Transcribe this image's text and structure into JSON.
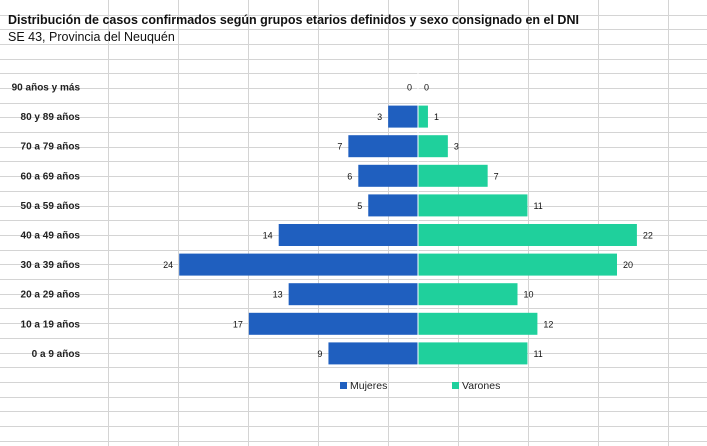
{
  "sheet": {
    "title": "Distribución de casos confirmados según grupos etarios definidos y sexo consignado en el DNI",
    "subtitle": "SE 43, Provincia del Neuquén"
  },
  "chart_data": {
    "type": "bar",
    "orientation": "horizontal",
    "layout": "population-pyramid",
    "categories": [
      "90 años y más",
      "80 y 89 años",
      "70 a 79 años",
      "60 a 69 años",
      "50 a 59 años",
      "40 a 49 años",
      "30 a 39 años",
      "20 a 29 años",
      "10 a 19 años",
      "0 a 9 años"
    ],
    "series": [
      {
        "name": "Mujeres",
        "color": "#1f5fbf",
        "side": "left",
        "values": [
          0,
          3,
          7,
          6,
          5,
          14,
          24,
          13,
          17,
          9
        ]
      },
      {
        "name": "Varones",
        "color": "#1fd09c",
        "side": "right",
        "values": [
          0,
          1,
          3,
          7,
          11,
          22,
          20,
          10,
          12,
          11
        ]
      }
    ],
    "legend_position": "bottom",
    "grid": false
  }
}
